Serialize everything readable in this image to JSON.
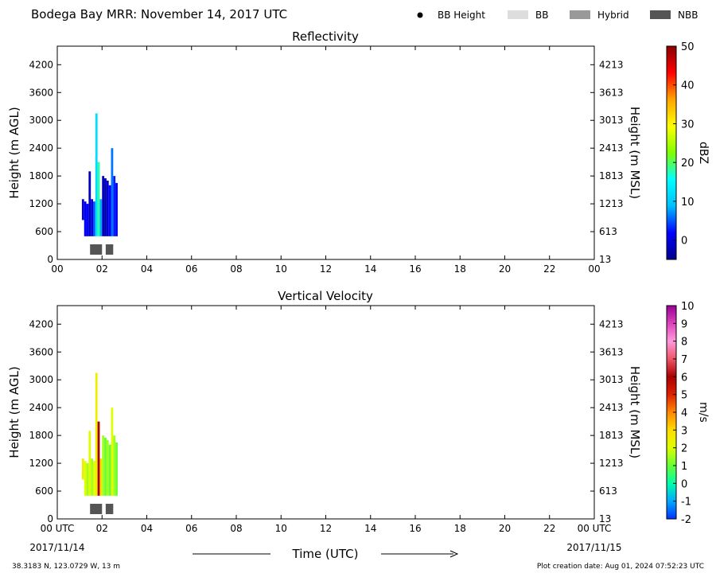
{
  "title": "Bodega Bay MRR:  November 14, 2017 UTC",
  "legend": {
    "placement": "top-right",
    "items": [
      {
        "label": "BB Height",
        "marker": "dot",
        "color": "#000000"
      },
      {
        "label": "BB",
        "marker": "swatch",
        "color": "#dddddd"
      },
      {
        "label": "Hybrid",
        "marker": "swatch",
        "color": "#999999"
      },
      {
        "label": "NBB",
        "marker": "swatch",
        "color": "#555555"
      }
    ]
  },
  "footer": {
    "location": "38.3183 N, 123.0729 W, 13 m",
    "creation": "Plot creation date: Aug 01, 2024 07:52:23 UTC",
    "xlabel": "Time (UTC)",
    "start_date": "2017/11/14",
    "end_date": "2017/11/15"
  },
  "chart_data": [
    {
      "type": "heatmap",
      "title": "Reflectivity",
      "ylabel": "Height (m AGL)",
      "ylabel_right": "Height (m MSL)",
      "xlim": [
        0,
        24
      ],
      "ylim": [
        0,
        4600
      ],
      "x_ticks": [
        "00",
        "02",
        "04",
        "06",
        "08",
        "10",
        "12",
        "14",
        "16",
        "18",
        "20",
        "22",
        "00"
      ],
      "y_ticks": [
        0,
        600,
        1200,
        1800,
        2400,
        3000,
        3600,
        4200
      ],
      "y_ticks_right": [
        "13",
        "613",
        "1213",
        "1813",
        "2413",
        "3013",
        "3613",
        "4213"
      ],
      "colorbar": {
        "label": "dBZ",
        "min": -5,
        "max": 50,
        "ticks": [
          "0",
          "10",
          "20",
          "30",
          "40",
          "50"
        ],
        "colors": [
          "#00008b",
          "#0000ff",
          "#00bfff",
          "#00ffff",
          "#7fff00",
          "#ffff00",
          "#ffa500",
          "#ff0000",
          "#8b0000"
        ]
      },
      "columns": [
        {
          "t": 1.15,
          "bottom": 850,
          "top": 1300,
          "value": 0
        },
        {
          "t": 1.25,
          "bottom": 500,
          "top": 1250,
          "value": 1
        },
        {
          "t": 1.35,
          "bottom": 500,
          "top": 1200,
          "value": 2
        },
        {
          "t": 1.45,
          "bottom": 500,
          "top": 1900,
          "value": -2
        },
        {
          "t": 1.55,
          "bottom": 500,
          "top": 1300,
          "value": 0
        },
        {
          "t": 1.65,
          "bottom": 500,
          "top": 1250,
          "value": 5
        },
        {
          "t": 1.75,
          "bottom": 500,
          "top": 3150,
          "value": 12
        },
        {
          "t": 1.85,
          "bottom": 500,
          "top": 2100,
          "value": 18
        },
        {
          "t": 1.95,
          "bottom": 500,
          "top": 1300,
          "value": 8
        },
        {
          "t": 2.05,
          "bottom": 500,
          "top": 1800,
          "value": -2
        },
        {
          "t": 2.15,
          "bottom": 500,
          "top": 1750,
          "value": -3
        },
        {
          "t": 2.25,
          "bottom": 500,
          "top": 1700,
          "value": -1
        },
        {
          "t": 2.35,
          "bottom": 500,
          "top": 1600,
          "value": 2
        },
        {
          "t": 2.45,
          "bottom": 500,
          "top": 2400,
          "value": 6
        },
        {
          "t": 2.55,
          "bottom": 500,
          "top": 1800,
          "value": 3
        },
        {
          "t": 2.65,
          "bottom": 500,
          "top": 1650,
          "value": 1
        }
      ],
      "bb_flags": [
        {
          "start": 1.5,
          "end": 2.0,
          "kind": "NBB"
        },
        {
          "start": 2.2,
          "end": 2.5,
          "kind": "NBB"
        }
      ]
    },
    {
      "type": "heatmap",
      "title": "Vertical Velocity",
      "ylabel": "Height (m AGL)",
      "ylabel_right": "Height (m MSL)",
      "xlim": [
        0,
        24
      ],
      "ylim": [
        0,
        4600
      ],
      "x_ticks": [
        "00 UTC",
        "02",
        "04",
        "06",
        "08",
        "10",
        "12",
        "14",
        "16",
        "18",
        "20",
        "22",
        "00 UTC"
      ],
      "y_ticks": [
        0,
        600,
        1200,
        1800,
        2400,
        3000,
        3600,
        4200
      ],
      "y_ticks_right": [
        "13",
        "613",
        "1213",
        "1813",
        "2413",
        "3013",
        "3613",
        "4213"
      ],
      "colorbar": {
        "label": "m/s",
        "min": -2,
        "max": 10,
        "ticks": [
          "-2",
          "-1",
          "0",
          "1",
          "2",
          "3",
          "4",
          "5",
          "6",
          "7",
          "8",
          "9",
          "10"
        ],
        "colors": [
          "#0033ff",
          "#00aaff",
          "#00ffaa",
          "#66ff33",
          "#ddff00",
          "#ffdd00",
          "#ff8800",
          "#dd2200",
          "#aa0000",
          "#ee5566",
          "#ff99dd",
          "#dd44bb",
          "#990099"
        ]
      },
      "columns": [
        {
          "t": 1.15,
          "bottom": 850,
          "top": 1300,
          "value": 2.5
        },
        {
          "t": 1.25,
          "bottom": 500,
          "top": 1250,
          "value": 2
        },
        {
          "t": 1.35,
          "bottom": 500,
          "top": 1200,
          "value": 1.5
        },
        {
          "t": 1.45,
          "bottom": 500,
          "top": 1900,
          "value": 2
        },
        {
          "t": 1.55,
          "bottom": 500,
          "top": 1300,
          "value": 1.5
        },
        {
          "t": 1.65,
          "bottom": 500,
          "top": 1250,
          "value": 2
        },
        {
          "t": 1.75,
          "bottom": 500,
          "top": 3150,
          "value": 2.5
        },
        {
          "t": 1.85,
          "bottom": 500,
          "top": 2100,
          "value": 6
        },
        {
          "t": 1.95,
          "bottom": 500,
          "top": 1300,
          "value": 3
        },
        {
          "t": 2.05,
          "bottom": 500,
          "top": 1800,
          "value": 1.5
        },
        {
          "t": 2.15,
          "bottom": 500,
          "top": 1750,
          "value": 1
        },
        {
          "t": 2.25,
          "bottom": 500,
          "top": 1700,
          "value": 1.5
        },
        {
          "t": 2.35,
          "bottom": 500,
          "top": 1600,
          "value": 1
        },
        {
          "t": 2.45,
          "bottom": 500,
          "top": 2400,
          "value": 2
        },
        {
          "t": 2.55,
          "bottom": 500,
          "top": 1800,
          "value": 1.5
        },
        {
          "t": 2.65,
          "bottom": 500,
          "top": 1650,
          "value": 1
        }
      ],
      "bb_flags": [
        {
          "start": 1.5,
          "end": 2.0,
          "kind": "NBB"
        },
        {
          "start": 2.2,
          "end": 2.5,
          "kind": "NBB"
        }
      ]
    }
  ]
}
